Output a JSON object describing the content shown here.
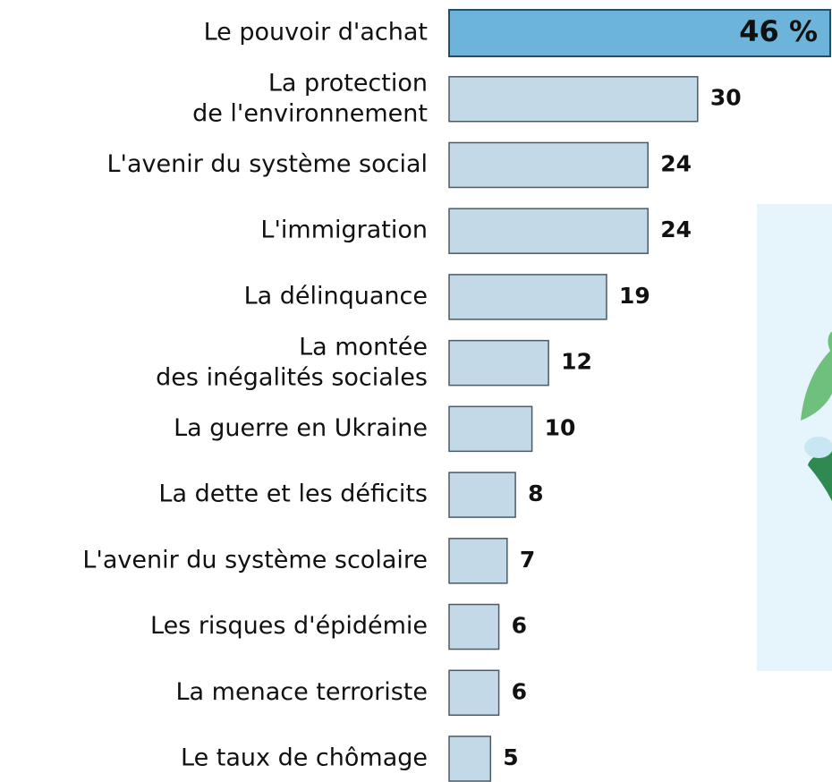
{
  "chart_data": {
    "type": "bar",
    "orientation": "horizontal",
    "categories": [
      "Le pouvoir d'achat",
      "La protection\nde l'environnement",
      "L'avenir du système social",
      "L'immigration",
      "La délinquance",
      "La montée\ndes inégalités sociales",
      "La guerre en Ukraine",
      "La dette et les déficits",
      "L'avenir du système scolaire",
      "Les risques d'épidémie",
      "La menace terroriste",
      "Le taux de chômage"
    ],
    "values": [
      46,
      30,
      24,
      24,
      19,
      12,
      10,
      8,
      7,
      6,
      6,
      5
    ],
    "value_labels": [
      "46 %",
      "30",
      "24",
      "24",
      "19",
      "12",
      "10",
      "8",
      "7",
      "6",
      "6",
      "5"
    ],
    "colors": [
      "#6cb4da",
      "#c4d9e7",
      "#c4d9e7",
      "#c4d9e7",
      "#c4d9e7",
      "#c4d9e7",
      "#c4d9e7",
      "#c4d9e7",
      "#c4d9e7",
      "#c4d9e7",
      "#c4d9e7",
      "#c4d9e7"
    ]
  }
}
